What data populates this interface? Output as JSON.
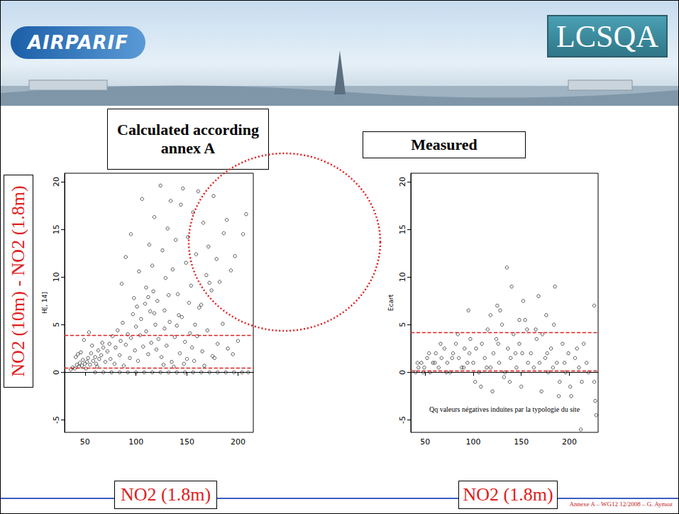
{
  "header": {
    "logos": [
      "AIRPARIF",
      "LCSQA"
    ]
  },
  "shared_y_label": "NO2 (10m) - NO2 (1.8m)",
  "footer": "Annexe A – WG12 12/2008 – G. Aymoz",
  "chart_data": [
    {
      "type": "scatter",
      "title": "Calculated according annex A",
      "x_label": "NO2 (1.8m)",
      "y_label": "H[, 14]",
      "color": "#000000",
      "marker": "open_circle",
      "grid": false,
      "xlim": [
        30,
        215
      ],
      "ylim": [
        -6.3,
        20.9
      ],
      "xticks": [
        50,
        100,
        150,
        200
      ],
      "yticks": [
        -5,
        0,
        5,
        10,
        15,
        20
      ],
      "reference_lines": {
        "values": [
          0.5,
          3.9
        ],
        "color": "#e02020",
        "line_style": "dashed"
      },
      "x": [
        36,
        38,
        40,
        42,
        44,
        45,
        47,
        48,
        50,
        52,
        53,
        55,
        56,
        58,
        60,
        61,
        63,
        64,
        66,
        68,
        70,
        41,
        46,
        51,
        57,
        62,
        67,
        43,
        49,
        54,
        72,
        74,
        75,
        77,
        79,
        80,
        82,
        84,
        85,
        87,
        88,
        90,
        92,
        94,
        95,
        97,
        99,
        100,
        102,
        104,
        105,
        107,
        109,
        110,
        112,
        114,
        115,
        117,
        119,
        120,
        122,
        125,
        128,
        130,
        133,
        135,
        138,
        140,
        143,
        145,
        148,
        150,
        153,
        155,
        158,
        160,
        165,
        170,
        175,
        180,
        185,
        190,
        195,
        200,
        127,
        137,
        147,
        157,
        167,
        177,
        60,
        68,
        76,
        84,
        92,
        100,
        108,
        116,
        124,
        132,
        140,
        148,
        156,
        164,
        172,
        180,
        188,
        196,
        204,
        210,
        86,
        90,
        95,
        98,
        103,
        106,
        110,
        113,
        116,
        118,
        121,
        124,
        126,
        129,
        131,
        134,
        136,
        139,
        141,
        144,
        146,
        149,
        151,
        154,
        156,
        159,
        161,
        164,
        166,
        169,
        171,
        174,
        176,
        179,
        182,
        186,
        189,
        193,
        197,
        205,
        208,
        101,
        128,
        152,
        162,
        118,
        142,
        132,
        112,
        172
      ],
      "values": [
        0.3,
        0.5,
        0.4,
        0.8,
        0.6,
        1.0,
        0.7,
        1.3,
        0.9,
        1.1,
        1.5,
        0.8,
        2.0,
        1.2,
        1.6,
        0.9,
        2.3,
        1.4,
        1.8,
        2.6,
        1.1,
        1.6,
        2.1,
        0.4,
        2.8,
        0.6,
        3.1,
        1.9,
        3.4,
        4.2,
        2.2,
        3.0,
        1.4,
        3.8,
        0.9,
        2.6,
        4.4,
        1.8,
        3.3,
        5.2,
        0.7,
        2.9,
        4.0,
        1.5,
        3.6,
        6.1,
        2.3,
        4.8,
        1.2,
        3.9,
        5.6,
        2.7,
        7.2,
        4.3,
        1.9,
        6.4,
        3.1,
        8.5,
        5.0,
        2.4,
        3.5,
        1.6,
        4.6,
        2.8,
        5.3,
        1.1,
        3.7,
        4.9,
        2.0,
        5.8,
        3.2,
        1.4,
        4.1,
        2.6,
        5.0,
        3.8,
        2.2,
        4.4,
        1.7,
        3.0,
        5.1,
        2.5,
        1.9,
        3.3,
        0.8,
        0.6,
        0.9,
        1.2,
        0.7,
        1.5,
        0,
        0,
        0,
        0,
        0,
        0,
        0,
        0,
        0,
        0,
        0,
        0,
        0,
        0,
        0,
        0,
        0,
        0,
        0,
        0,
        9.3,
        12.1,
        14.5,
        7.8,
        10.6,
        18.2,
        8.9,
        13.4,
        11.2,
        16.3,
        7.5,
        19.6,
        12.8,
        9.9,
        15.1,
        18.0,
        10.8,
        13.9,
        8.2,
        17.6,
        19.3,
        11.5,
        14.2,
        9.1,
        16.8,
        12.4,
        19.0,
        7.1,
        15.7,
        10.2,
        13.2,
        8.6,
        18.5,
        11.9,
        9.5,
        14.6,
        16.0,
        10.7,
        12.2,
        14.5,
        16.6,
        6.9,
        6.5,
        7.3,
        6.8,
        6.2,
        6.0,
        8.1,
        7.9,
        9.4
      ]
    },
    {
      "type": "scatter",
      "title": "Measured",
      "x_label": "NO2 (1.8m)",
      "y_label": "Ecart",
      "color": "#000000",
      "marker": "open_circle",
      "grid": false,
      "xlim": [
        35,
        230
      ],
      "ylim": [
        -6.3,
        20.9
      ],
      "xticks": [
        50,
        100,
        150,
        200
      ],
      "yticks": [
        -5,
        0,
        5,
        10,
        15,
        20
      ],
      "reference_lines": {
        "values": [
          0.2,
          4.2
        ],
        "color": "#e02020",
        "line_style": "dashed"
      },
      "annotation": "Qq valeurs négatives induites par la typologie du site",
      "x": [
        40,
        43,
        46,
        49,
        52,
        55,
        58,
        61,
        64,
        67,
        70,
        73,
        76,
        79,
        82,
        85,
        88,
        91,
        94,
        97,
        42,
        48,
        54,
        60,
        66,
        72,
        78,
        84,
        90,
        96,
        100,
        103,
        106,
        109,
        112,
        115,
        118,
        121,
        124,
        127,
        130,
        133,
        136,
        139,
        142,
        145,
        148,
        151,
        154,
        157,
        102,
        108,
        114,
        120,
        126,
        132,
        138,
        144,
        150,
        156,
        160,
        163,
        166,
        169,
        172,
        175,
        178,
        181,
        184,
        187,
        190,
        193,
        196,
        199,
        202,
        206,
        210,
        215,
        220,
        226,
        165,
        171,
        177,
        183,
        189,
        195,
        201,
        208,
        213,
        218,
        95,
        118,
        125,
        128,
        135,
        140,
        148,
        152,
        168,
        176,
        185,
        212,
        226,
        228,
        227
      ],
      "values": [
        0,
        0.5,
        1,
        0.5,
        1.5,
        0,
        1,
        2,
        0.5,
        1.5,
        2.5,
        1,
        0,
        2,
        3,
        1.5,
        0.5,
        2.5,
        1,
        3.5,
        1,
        0,
        2,
        1,
        3,
        0,
        1.5,
        4,
        0.5,
        2,
        1,
        2.5,
        0,
        3,
        1.5,
        4.5,
        0.5,
        2,
        3.5,
        1,
        5,
        0,
        2.5,
        1.5,
        4,
        0.5,
        3,
        2,
        5.5,
        1,
        -1,
        -1.5,
        0.5,
        -2,
        3,
        -0.5,
        -1,
        2,
        -1.5,
        4.5,
        2,
        0.5,
        3.5,
        1,
        4,
        1.5,
        0,
        2.5,
        5,
        1,
        -1,
        3,
        0,
        2,
        -2.5,
        1.5,
        0.5,
        3,
        0,
        -1,
        4.5,
        -2,
        2,
        0.5,
        -2.5,
        1,
        -1.5,
        2.5,
        -1,
        1,
        6.5,
        6,
        7,
        6.5,
        11,
        9,
        5.5,
        7.5,
        8,
        6,
        9,
        -6,
        7,
        -4.5,
        -3
      ]
    }
  ]
}
